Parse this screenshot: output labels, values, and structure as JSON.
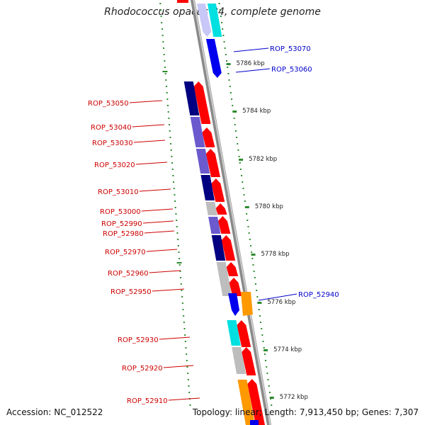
{
  "title": "Rhodococcus opacus B4, complete genome",
  "footer": {
    "accession": "Accession: NC_012522",
    "topology": "Topology: linear; Length: 7,913,450 bp; Genes: 7,307"
  },
  "colors": {
    "backbone": "#8a8a8a",
    "dots": "#2e8b2e",
    "left_label": "#cc0000",
    "right_label": "#0000cc",
    "red": "#ff0000",
    "navy": "#000080",
    "slate": "#6a5acd",
    "blue": "#0000ee",
    "lavender": "#c8c8f8",
    "cyan": "#00e0e0",
    "grey": "#bdbdbd",
    "orange": "#ff9900"
  },
  "scale_labels": [
    "5786 kbp",
    "5784 kbp",
    "5782 kbp",
    "5780 kbp",
    "5778 kbp",
    "5776 kbp",
    "5774 kbp",
    "5772 kbp"
  ],
  "left_genes": [
    "ROP_53050",
    "ROP_53040",
    "ROP_53030",
    "ROP_53020",
    "ROP_53010",
    "ROP_53000",
    "ROP_52990",
    "ROP_52980",
    "ROP_52970",
    "ROP_52960",
    "ROP_52950",
    "ROP_52930",
    "ROP_52920",
    "ROP_52910"
  ],
  "right_genes": [
    "ROP_53070",
    "ROP_53060",
    "ROP_52940"
  ]
}
